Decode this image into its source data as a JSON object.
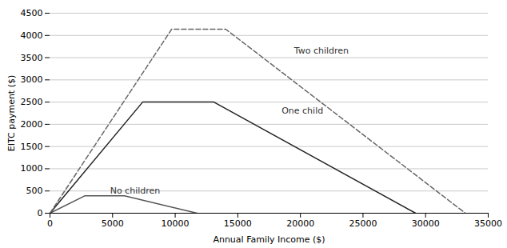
{
  "chart_data": {
    "type": "line",
    "xlabel": "Annual Family Income ($)",
    "ylabel": "EITC payment ($)",
    "xlim": [
      0,
      35000
    ],
    "ylim": [
      0,
      4500
    ],
    "xticks": [
      0,
      5000,
      10000,
      15000,
      20000,
      25000,
      30000,
      35000
    ],
    "yticks": [
      0,
      500,
      1000,
      1500,
      2000,
      2500,
      3000,
      3500,
      4000,
      4500
    ],
    "grid": true,
    "series": [
      {
        "x": [
          0,
          2770,
          4140,
          5950,
          11750
        ],
        "values": [
          0,
          390,
          390,
          390,
          0
        ],
        "color": "#555555",
        "line_style": "solid"
      },
      {
        "x": [
          0,
          7400,
          13090,
          29201
        ],
        "values": [
          0,
          2500,
          2500,
          0
        ],
        "color": "#222222",
        "line_style": "solid"
      },
      {
        "x": [
          0,
          9720,
          14040,
          33178
        ],
        "values": [
          0,
          4140,
          4140,
          0
        ],
        "color": "#666666",
        "line_style": "dashed"
      }
    ],
    "annotations": [
      {
        "text": "No children",
        "x": 4800,
        "y": 500
      },
      {
        "text": "One child",
        "x": 18500,
        "y": 2300
      },
      {
        "text": "Two children",
        "x": 19500,
        "y": 3650
      }
    ]
  }
}
